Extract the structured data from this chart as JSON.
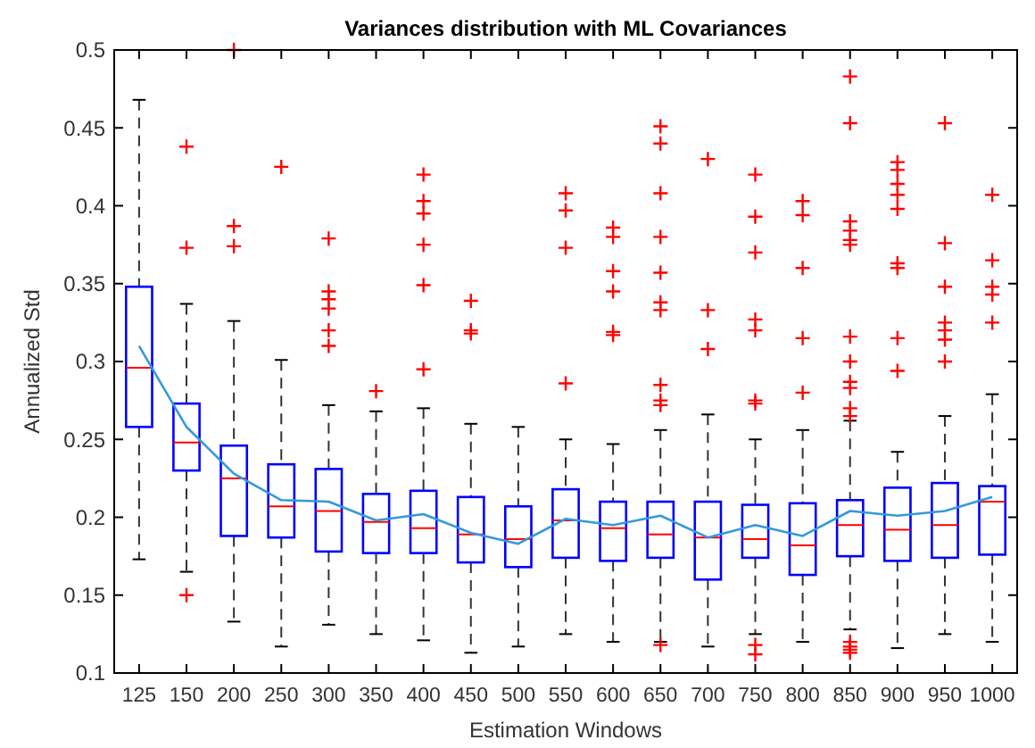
{
  "chart_data": {
    "type": "box",
    "title": "Variances distribution with ML Covariances",
    "xlabel": "Estimation Windows",
    "ylabel": "Annualized Std",
    "categories": [
      "125",
      "150",
      "200",
      "250",
      "300",
      "350",
      "400",
      "450",
      "500",
      "550",
      "600",
      "650",
      "700",
      "750",
      "800",
      "850",
      "900",
      "950",
      "1000"
    ],
    "ylim": [
      0.1,
      0.5
    ],
    "yticks": [
      0.1,
      0.15,
      0.2,
      0.25,
      0.3,
      0.35,
      0.4,
      0.45,
      0.5
    ],
    "grid": false,
    "series": [
      {
        "type": "box",
        "color": "#0000ff",
        "boxes": [
          {
            "low": 0.173,
            "q1": 0.258,
            "median": 0.296,
            "q3": 0.348,
            "high": 0.468
          },
          {
            "low": 0.165,
            "q1": 0.23,
            "median": 0.248,
            "q3": 0.273,
            "high": 0.337,
            "outliers": [
              0.438,
              0.373,
              0.15
            ]
          },
          {
            "low": 0.133,
            "q1": 0.188,
            "median": 0.225,
            "q3": 0.246,
            "high": 0.326,
            "outliers": [
              0.5,
              0.387,
              0.374
            ]
          },
          {
            "low": 0.117,
            "q1": 0.187,
            "median": 0.207,
            "q3": 0.234,
            "high": 0.301,
            "outliers": [
              0.425
            ]
          },
          {
            "low": 0.131,
            "q1": 0.178,
            "median": 0.204,
            "q3": 0.231,
            "high": 0.272,
            "outliers": [
              0.379,
              0.345,
              0.34,
              0.334,
              0.32,
              0.31
            ]
          },
          {
            "low": 0.125,
            "q1": 0.177,
            "median": 0.197,
            "q3": 0.215,
            "high": 0.268,
            "outliers": [
              0.281
            ]
          },
          {
            "low": 0.121,
            "q1": 0.177,
            "median": 0.193,
            "q3": 0.217,
            "high": 0.27,
            "outliers": [
              0.42,
              0.403,
              0.395,
              0.375,
              0.349,
              0.295
            ]
          },
          {
            "low": 0.113,
            "q1": 0.171,
            "median": 0.189,
            "q3": 0.213,
            "high": 0.26,
            "outliers": [
              0.339,
              0.32,
              0.318
            ]
          },
          {
            "low": 0.117,
            "q1": 0.168,
            "median": 0.186,
            "q3": 0.207,
            "high": 0.258
          },
          {
            "low": 0.125,
            "q1": 0.174,
            "median": 0.198,
            "q3": 0.218,
            "high": 0.25,
            "outliers": [
              0.408,
              0.397,
              0.373,
              0.286
            ]
          },
          {
            "low": 0.12,
            "q1": 0.172,
            "median": 0.193,
            "q3": 0.21,
            "high": 0.247,
            "outliers": [
              0.386,
              0.38,
              0.358,
              0.345,
              0.319,
              0.317
            ]
          },
          {
            "low": 0.12,
            "q1": 0.174,
            "median": 0.189,
            "q3": 0.21,
            "high": 0.256,
            "outliers": [
              0.451,
              0.44,
              0.408,
              0.38,
              0.357,
              0.338,
              0.333,
              0.285,
              0.275,
              0.272,
              0.118
            ]
          },
          {
            "low": 0.117,
            "q1": 0.16,
            "median": 0.187,
            "q3": 0.21,
            "high": 0.266,
            "outliers": [
              0.43,
              0.333,
              0.308
            ]
          },
          {
            "low": 0.125,
            "q1": 0.174,
            "median": 0.186,
            "q3": 0.208,
            "high": 0.25,
            "outliers": [
              0.42,
              0.393,
              0.37,
              0.327,
              0.32,
              0.275,
              0.273,
              0.118,
              0.112
            ]
          },
          {
            "low": 0.12,
            "q1": 0.163,
            "median": 0.182,
            "q3": 0.209,
            "high": 0.256,
            "outliers": [
              0.403,
              0.394,
              0.36,
              0.315,
              0.28
            ]
          },
          {
            "low": 0.128,
            "q1": 0.175,
            "median": 0.195,
            "q3": 0.211,
            "high": 0.262,
            "outliers": [
              0.483,
              0.453,
              0.39,
              0.384,
              0.378,
              0.375,
              0.316,
              0.3,
              0.287,
              0.283,
              0.27,
              0.265,
              0.12,
              0.117,
              0.115,
              0.113
            ]
          },
          {
            "low": 0.116,
            "q1": 0.172,
            "median": 0.192,
            "q3": 0.219,
            "high": 0.242,
            "outliers": [
              0.428,
              0.423,
              0.414,
              0.407,
              0.398,
              0.363,
              0.36,
              0.315,
              0.294
            ]
          },
          {
            "low": 0.125,
            "q1": 0.174,
            "median": 0.195,
            "q3": 0.222,
            "high": 0.265,
            "outliers": [
              0.453,
              0.376,
              0.348,
              0.325,
              0.32,
              0.314,
              0.3
            ]
          },
          {
            "low": 0.12,
            "q1": 0.176,
            "median": 0.21,
            "q3": 0.22,
            "high": 0.279,
            "outliers": [
              0.407,
              0.365,
              0.348,
              0.343,
              0.325
            ]
          }
        ]
      },
      {
        "type": "line",
        "color": "#3399dd",
        "values": [
          0.31,
          0.258,
          0.228,
          0.211,
          0.21,
          0.198,
          0.202,
          0.19,
          0.183,
          0.199,
          0.195,
          0.201,
          0.187,
          0.195,
          0.188,
          0.204,
          0.201,
          0.204,
          0.213
        ]
      }
    ]
  }
}
